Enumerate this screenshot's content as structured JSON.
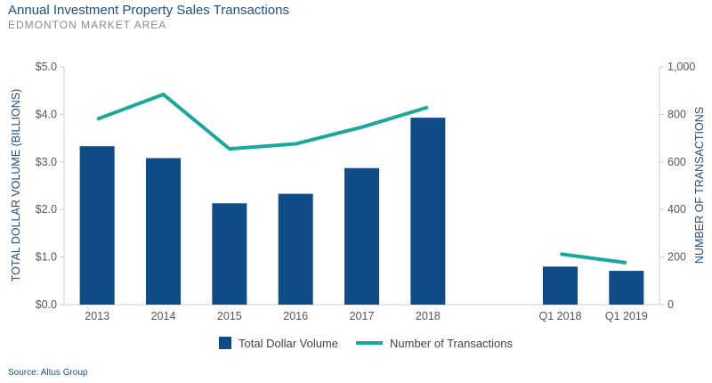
{
  "title": "Annual Investment Property Sales Transactions",
  "subtitle": "EDMONTON MARKET AREA",
  "source": "Source: Altus Group",
  "chart_data": {
    "type": "bar",
    "categories": [
      "2013",
      "2014",
      "2015",
      "2016",
      "2017",
      "2018",
      "Q1 2018",
      "Q1 2019"
    ],
    "series": [
      {
        "name": "Total Dollar Volume",
        "type": "bar",
        "axis": "left",
        "color": "#0f4c87",
        "values": [
          3.33,
          3.08,
          2.13,
          2.33,
          2.87,
          3.93,
          0.8,
          0.71
        ]
      },
      {
        "name": "Number of Transactions",
        "type": "line",
        "axis": "right",
        "color": "#1aa89a",
        "segments": [
          [
            0,
            5
          ],
          [
            6,
            7
          ]
        ],
        "values": [
          780,
          884,
          655,
          676,
          746,
          830,
          213,
          176
        ]
      }
    ],
    "ylabel": "TOTAL DOLLAR VOLUME (BILLIONS)",
    "y2label": "NUMBER OF TRANSACTIONS",
    "ylim": [
      0,
      5
    ],
    "y2lim": [
      0,
      1000
    ],
    "yticks": [
      "$0.0",
      "$1.0",
      "$2.0",
      "$3.0",
      "$4.0",
      "$5.0"
    ],
    "y2ticks": [
      "0",
      "200",
      "400",
      "600",
      "800",
      "1,000"
    ],
    "grid": false,
    "legend": "bottom"
  }
}
